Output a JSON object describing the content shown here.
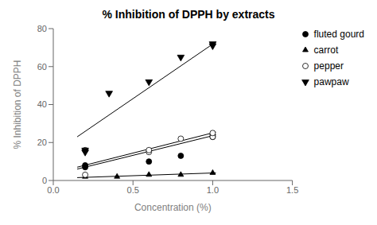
{
  "chart_data": {
    "type": "scatter",
    "title": "% Inhibition of DPPH by extracts",
    "x_label": "Concentration (%)",
    "y_label": "% Inhibition of DPPH",
    "xlim": [
      0.0,
      1.5
    ],
    "ylim": [
      0,
      80
    ],
    "xticks": [
      {
        "value": 0,
        "label": "0.0"
      },
      0.5,
      {
        "value": 1,
        "label": "1.0"
      },
      1.5
    ],
    "yticks": [
      0,
      20,
      40,
      60,
      80
    ],
    "grid": false,
    "legend": "upper right",
    "series": [
      {
        "name": "fluted gourd",
        "marker": "circle",
        "color": "black",
        "x": [
          0.2,
          0.2,
          0.6,
          0.8,
          1.0,
          1.0
        ],
        "y": [
          8,
          7,
          10,
          13,
          24,
          23
        ],
        "line_x": [
          0.15,
          1.02
        ],
        "line_y": [
          6.0,
          24.0
        ]
      },
      {
        "name": "carrot",
        "marker": "triangle",
        "color": "black",
        "x": [
          0.2,
          0.4,
          0.6,
          0.8,
          1.0
        ],
        "y": [
          2,
          2,
          3,
          3,
          4
        ],
        "line_x": [
          0.15,
          1.02
        ],
        "line_y": [
          1.5,
          4.0
        ]
      },
      {
        "name": "pepper",
        "marker": "circle",
        "color": "white",
        "x": [
          0.2,
          0.2,
          0.6,
          0.6,
          0.8,
          1.0,
          1.0
        ],
        "y": [
          3,
          16,
          15,
          16,
          22,
          23,
          25
        ],
        "line_x": [
          0.15,
          1.02
        ],
        "line_y": [
          7.0,
          25.5
        ]
      },
      {
        "name": "pawpaw",
        "marker": "triangle-down",
        "color": "black",
        "x": [
          0.2,
          0.2,
          0.35,
          0.6,
          0.8,
          1.0,
          1.0
        ],
        "y": [
          15,
          16,
          46,
          52,
          65,
          71,
          72
        ],
        "line_x": [
          0.15,
          1.02
        ],
        "line_y": [
          23,
          73
        ]
      }
    ]
  }
}
